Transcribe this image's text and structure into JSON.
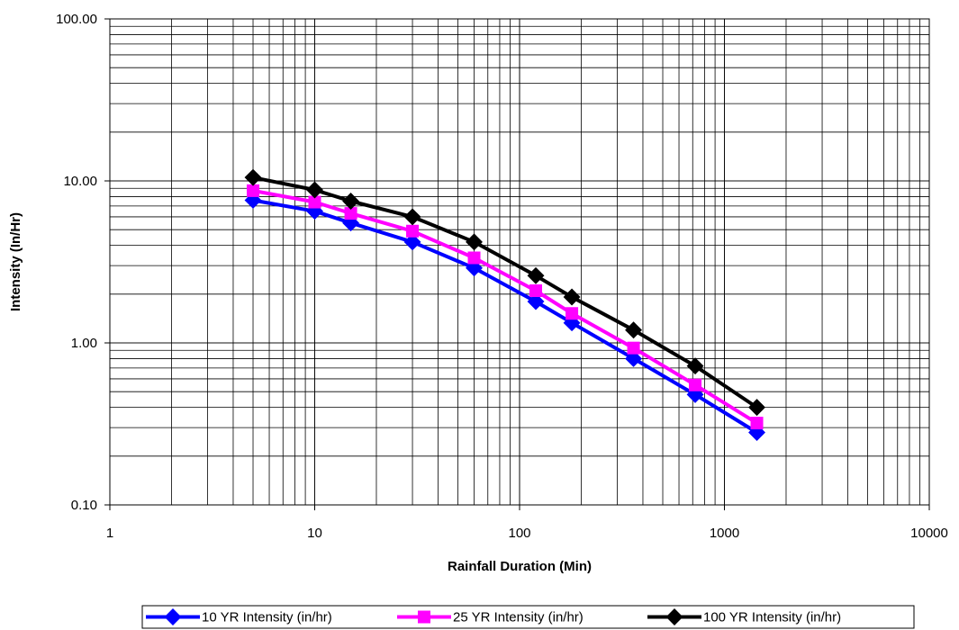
{
  "chart_data": {
    "type": "line",
    "xlabel": "Rainfall Duration (Min)",
    "ylabel": "Intensity (In/Hr)",
    "x_scale": "log",
    "y_scale": "log",
    "xlim": [
      1,
      10000
    ],
    "ylim": [
      0.1,
      100
    ],
    "x_tick_labels": [
      "1",
      "10",
      "100",
      "1000",
      "10000"
    ],
    "y_tick_labels": [
      "0.10",
      "1.00",
      "10.00",
      "100.00"
    ],
    "grid": true,
    "legend_position": "bottom",
    "x": [
      5,
      10,
      15,
      30,
      60,
      120,
      180,
      360,
      720,
      1440
    ],
    "series": [
      {
        "name": "10 YR Intensity (in/hr)",
        "color": "#0000ff",
        "marker": "diamond",
        "values": [
          7.6,
          6.5,
          5.5,
          4.2,
          2.9,
          1.8,
          1.33,
          0.8,
          0.48,
          0.28
        ]
      },
      {
        "name": "25 YR Intensity (in/hr)",
        "color": "#ff00ff",
        "marker": "square",
        "values": [
          8.7,
          7.4,
          6.3,
          4.9,
          3.35,
          2.1,
          1.52,
          0.93,
          0.55,
          0.32
        ]
      },
      {
        "name": "100 YR Intensity (in/hr)",
        "color": "#000000",
        "marker": "diamond",
        "values": [
          10.5,
          8.8,
          7.5,
          6.0,
          4.2,
          2.6,
          1.92,
          1.2,
          0.72,
          0.4
        ]
      }
    ]
  }
}
